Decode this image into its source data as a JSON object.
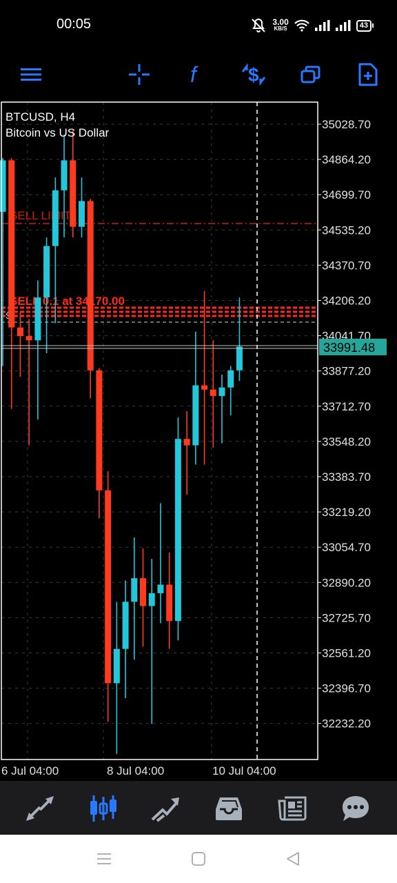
{
  "status": {
    "time": "00:05",
    "speed_value": "3.00",
    "speed_unit": "KB/S",
    "battery": "43"
  },
  "toolbar": {
    "icons": [
      "menu-icon",
      "crosshair-icon",
      "indicators-icon",
      "trade-icon",
      "objects-icon",
      "new-order-icon"
    ]
  },
  "chart": {
    "symbol_line": "BTCUSD, H4",
    "description": "Bitcoin vs US Dollar",
    "price_labels": [
      "35028.70",
      "34864.20",
      "34699.70",
      "34535.20",
      "34370.70",
      "34206.20",
      "34041.70",
      "33877.20",
      "33712.70",
      "33548.20",
      "33383.70",
      "33219.20",
      "33054.70",
      "32890.20",
      "32725.70",
      "32561.20",
      "32396.70",
      "32232.20"
    ],
    "current_price": "33991.48",
    "time_labels": [
      "6 Jul 04:00",
      "8 Jul 04:00",
      "10 Jul 04:00"
    ],
    "sell_limit_label": "SELL LIMIT",
    "sell_order_label": "SELL 0.1 at 34170.00",
    "small_s_label": "S",
    "colors": {
      "bull": "#26c6da",
      "bear": "#ff3b1f",
      "grid": "#3a3a3a",
      "accent": "#2979ff",
      "price_tag": "#26a69a"
    },
    "candles": [
      {
        "o": 34620,
        "h": 34870,
        "l": 33900,
        "c": 34860
      },
      {
        "o": 34860,
        "h": 34870,
        "l": 33700,
        "c": 34080
      },
      {
        "o": 34080,
        "h": 34150,
        "l": 33850,
        "c": 34040
      },
      {
        "o": 34040,
        "h": 34120,
        "l": 33530,
        "c": 34020
      },
      {
        "o": 34020,
        "h": 34300,
        "l": 33650,
        "c": 34220
      },
      {
        "o": 34220,
        "h": 34500,
        "l": 33960,
        "c": 34460
      },
      {
        "o": 34460,
        "h": 34780,
        "l": 34100,
        "c": 34720
      },
      {
        "o": 34720,
        "h": 34980,
        "l": 34500,
        "c": 34860
      },
      {
        "o": 34860,
        "h": 35000,
        "l": 34500,
        "c": 34550
      },
      {
        "o": 34550,
        "h": 34780,
        "l": 34500,
        "c": 34670
      },
      {
        "o": 34670,
        "h": 34680,
        "l": 33750,
        "c": 33880
      },
      {
        "o": 33880,
        "h": 33890,
        "l": 33190,
        "c": 33320
      },
      {
        "o": 33320,
        "h": 33410,
        "l": 32240,
        "c": 32420
      },
      {
        "o": 32420,
        "h": 32800,
        "l": 32090,
        "c": 32580
      },
      {
        "o": 32580,
        "h": 32900,
        "l": 32350,
        "c": 32800
      },
      {
        "o": 32800,
        "h": 33100,
        "l": 32530,
        "c": 32910
      },
      {
        "o": 32910,
        "h": 33050,
        "l": 32590,
        "c": 32780
      },
      {
        "o": 32780,
        "h": 33000,
        "l": 32230,
        "c": 32840
      },
      {
        "o": 32840,
        "h": 33260,
        "l": 32700,
        "c": 32880
      },
      {
        "o": 32880,
        "h": 33030,
        "l": 32580,
        "c": 32710
      },
      {
        "o": 32710,
        "h": 33660,
        "l": 32620,
        "c": 33560
      },
      {
        "o": 33560,
        "h": 33690,
        "l": 33300,
        "c": 33530
      },
      {
        "o": 33530,
        "h": 34060,
        "l": 33440,
        "c": 33810
      },
      {
        "o": 33810,
        "h": 34250,
        "l": 33440,
        "c": 33790
      },
      {
        "o": 33790,
        "h": 34020,
        "l": 33520,
        "c": 33760
      },
      {
        "o": 33760,
        "h": 33860,
        "l": 33540,
        "c": 33800
      },
      {
        "o": 33800,
        "h": 33900,
        "l": 33670,
        "c": 33880
      },
      {
        "o": 33880,
        "h": 34220,
        "l": 33830,
        "c": 33991
      }
    ]
  },
  "bottom_nav": {
    "icons": [
      "quotes-icon",
      "chart-icon",
      "trade-icon",
      "history-icon",
      "news-icon",
      "chat-icon"
    ]
  }
}
